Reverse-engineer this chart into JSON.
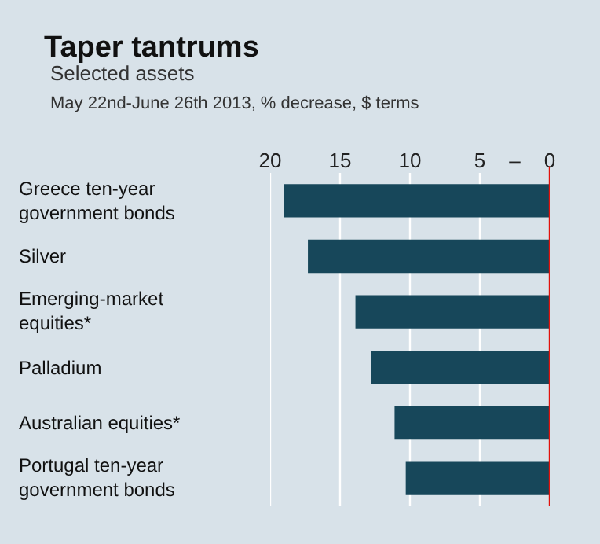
{
  "chart_data": {
    "type": "bar",
    "orientation": "horizontal",
    "title": "Taper tantrums",
    "subtitle": "Selected assets\nMay 22nd-June 26th 2013, % decrease, $ terms",
    "categories": [
      "Greece ten-year\ngovernment bonds",
      "Silver",
      "Emerging-market\nequities*",
      "Palladium",
      "Australian equities*",
      "Portugal ten-year\ngovernment bonds"
    ],
    "values": [
      19.0,
      17.3,
      13.9,
      12.8,
      11.1,
      10.3
    ],
    "color": "#17475a",
    "xlim": [
      20,
      0
    ],
    "xticks": [
      20,
      15,
      10,
      5,
      {
        "value": 2.5,
        "label": "–"
      },
      0
    ],
    "grid": "x",
    "ref_lines": [
      {
        "axis": "x",
        "value": 0,
        "color": "#e3120b"
      }
    ]
  }
}
